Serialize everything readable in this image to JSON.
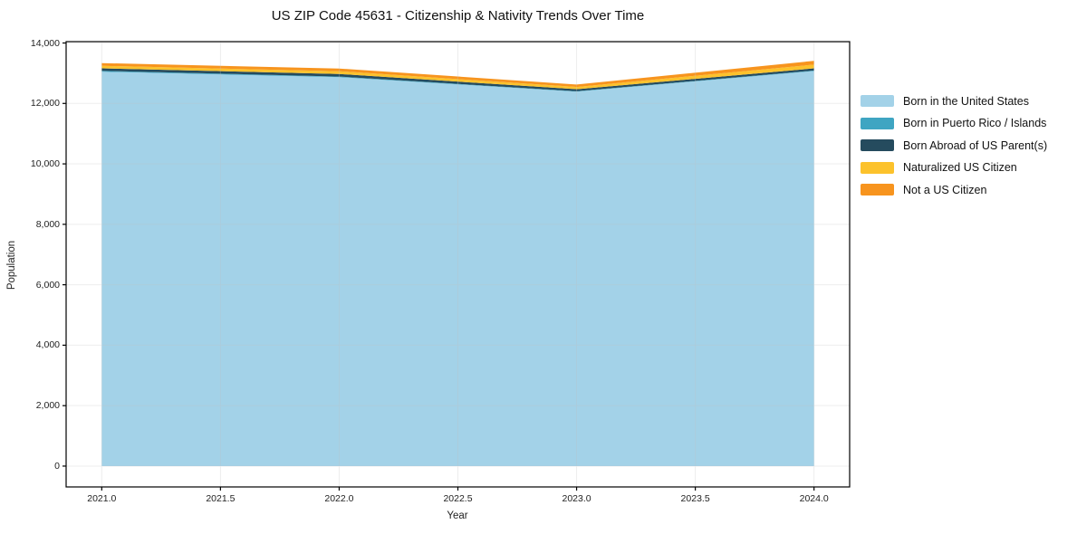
{
  "title": "US ZIP Code 45631 - Citizenship & Nativity Trends Over Time",
  "chart_data": {
    "type": "area",
    "stacked": true,
    "title": "US ZIP Code 45631 - Citizenship & Nativity Trends Over Time",
    "xlabel": "Year",
    "ylabel": "Population",
    "x": [
      2021,
      2022,
      2023,
      2024
    ],
    "series": [
      {
        "name": "Born in the United States",
        "color": "#a3d2e8",
        "values": [
          13050,
          12870,
          12390,
          13070
        ]
      },
      {
        "name": "Born in Puerto Rico / Islands",
        "color": "#3fa5c2",
        "values": [
          30,
          20,
          15,
          20
        ]
      },
      {
        "name": "Born Abroad of US Parent(s)",
        "color": "#254b5e",
        "values": [
          80,
          85,
          65,
          70
        ]
      },
      {
        "name": "Naturalized US Citizen",
        "color": "#fcc22c",
        "values": [
          85,
          90,
          75,
          125
        ]
      },
      {
        "name": "Not a US Citizen",
        "color": "#f7941e",
        "values": [
          90,
          90,
          80,
          125
        ]
      }
    ],
    "xlim": [
      2020.85,
      2024.15
    ],
    "ylim": [
      -690,
      14045
    ],
    "xticks": [
      2021.0,
      2021.5,
      2022.0,
      2022.5,
      2023.0,
      2023.5,
      2024.0
    ],
    "xtick_labels": [
      "2021.0",
      "2021.5",
      "2022.0",
      "2022.5",
      "2023.0",
      "2023.5",
      "2024.0"
    ],
    "yticks": [
      0,
      2000,
      4000,
      6000,
      8000,
      10000,
      12000,
      14000
    ],
    "ytick_labels": [
      "0",
      "2,000",
      "4,000",
      "6,000",
      "8,000",
      "10,000",
      "12,000",
      "14,000"
    ],
    "grid": true,
    "legend_position": "right-outside",
    "colors": {
      "spine": "#000000",
      "grid": "#c0c0c0",
      "text": "#1a1a1a",
      "background": "#ffffff"
    }
  }
}
